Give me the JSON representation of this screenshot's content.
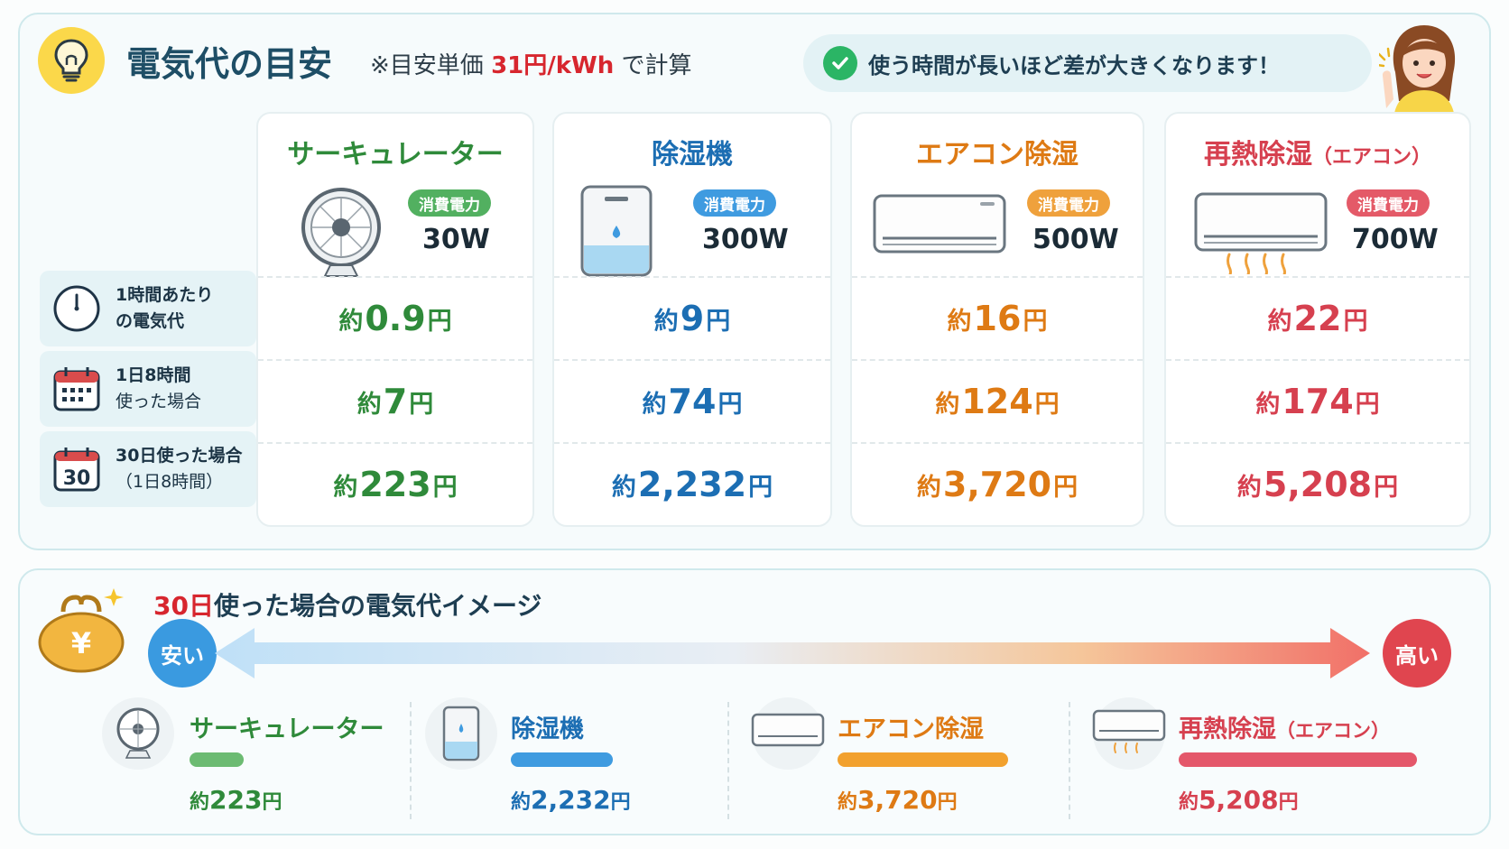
{
  "header": {
    "title": "電気代の目安",
    "subtitle_pre": "※目安単価 ",
    "subtitle_price": "31円/kWh",
    "subtitle_post": " で計算",
    "tip": "使う時間が長いほど差が大きくなります！"
  },
  "rows": [
    {
      "line1": "1時間あたり",
      "line2": "の電気代"
    },
    {
      "line1": "1日8時間",
      "line2": "使った場合"
    },
    {
      "line1": "30日使った場合",
      "line2": "（1日8時間）",
      "icon_text": "30"
    }
  ],
  "devices": [
    {
      "name": "サーキュレーター",
      "name_suffix": "",
      "badge": "消費電力",
      "watt": "30W",
      "prefix": "約",
      "suffix": "円",
      "costs": [
        "0.9",
        "7",
        "223"
      ],
      "color": "#2f8a3a",
      "badge_color": "#52b060"
    },
    {
      "name": "除湿機",
      "name_suffix": "",
      "badge": "消費電力",
      "watt": "300W",
      "prefix": "約",
      "suffix": "円",
      "costs": [
        "9",
        "74",
        "2,232"
      ],
      "color": "#1c6eb3",
      "badge_color": "#3f9be0"
    },
    {
      "name": "エアコン除湿",
      "name_suffix": "",
      "badge": "消費電力",
      "watt": "500W",
      "prefix": "約",
      "suffix": "円",
      "costs": [
        "16",
        "124",
        "3,720"
      ],
      "color": "#de7a14",
      "badge_color": "#efa13c"
    },
    {
      "name": "再熱除湿",
      "name_suffix": "（エアコン）",
      "badge": "消費電力",
      "watt": "700W",
      "prefix": "約",
      "suffix": "円",
      "costs": [
        "22",
        "174",
        "5,208"
      ],
      "color": "#d6404f",
      "badge_color": "#e45a68"
    }
  ],
  "bottom": {
    "title_days": "30日",
    "title_rest": "使った場合の電気代イメージ",
    "cheap": "安い",
    "expensive": "高い",
    "yen_symbol": "¥",
    "items": [
      {
        "name": "サーキュレーター",
        "name_suffix": "",
        "prefix": "約",
        "value": "223",
        "suffix": "円",
        "monthly_yen": 223
      },
      {
        "name": "除湿機",
        "name_suffix": "",
        "prefix": "約",
        "value": "2,232",
        "suffix": "円",
        "monthly_yen": 2232
      },
      {
        "name": "エアコン除湿",
        "name_suffix": "",
        "prefix": "約",
        "value": "3,720",
        "suffix": "円",
        "monthly_yen": 3720
      },
      {
        "name": "再熱除湿",
        "name_suffix": "（エアコン）",
        "prefix": "約",
        "value": "5,208",
        "suffix": "円",
        "monthly_yen": 5208
      }
    ]
  },
  "colors": {
    "accent_red": "#d7262e",
    "cheap_blue": "#3a9ae0",
    "expensive_red": "#e0454f"
  }
}
